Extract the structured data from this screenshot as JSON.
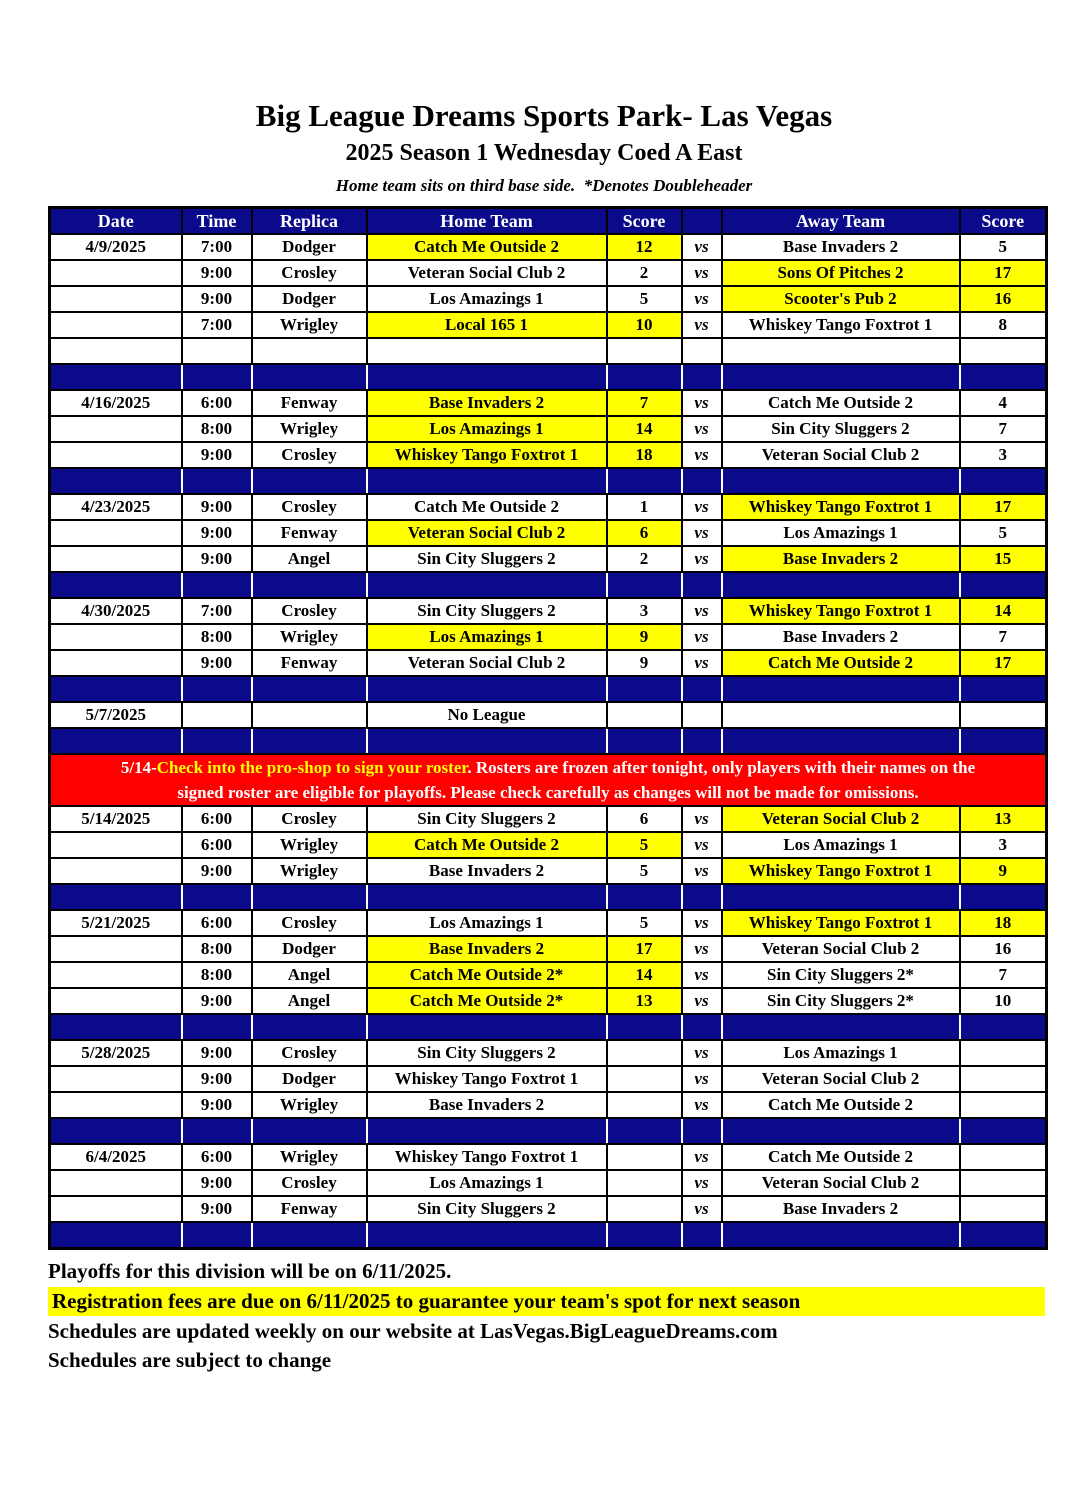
{
  "page": {
    "title": "Big League Dreams Sports Park- Las Vegas",
    "subtitle": "2025 Season 1 Wednesday Coed A East",
    "note": "Home team sits on third base side.  *Denotes Doubleheader"
  },
  "colors": {
    "navy": "#0a0a8a",
    "highlight_yellow": "#ffff00",
    "banner_red": "#fe0000",
    "header_text": "#ffffff"
  },
  "table": {
    "headers": {
      "date": "Date",
      "time": "Time",
      "replica": "Replica",
      "home": "Home Team",
      "score": "Score",
      "vs": "",
      "away": "Away Team",
      "score2": "Score"
    },
    "vs_label": "vs",
    "rows": [
      {
        "type": "game",
        "date": "4/9/2025",
        "time": "7:00",
        "replica": "Dodger",
        "home_team": "Catch Me Outside 2",
        "home_score": "12",
        "away_team": "Base Invaders 2",
        "away_score": "5",
        "winner": "home"
      },
      {
        "type": "game",
        "date": "",
        "time": "9:00",
        "replica": "Crosley",
        "home_team": "Veteran Social Club 2",
        "home_score": "2",
        "away_team": "Sons Of Pitches 2",
        "away_score": "17",
        "winner": "away"
      },
      {
        "type": "game",
        "date": "",
        "time": "9:00",
        "replica": "Dodger",
        "home_team": "Los Amazings 1",
        "home_score": "5",
        "away_team": "Scooter's Pub 2",
        "away_score": "16",
        "winner": "away"
      },
      {
        "type": "game",
        "date": "",
        "time": "7:00",
        "replica": "Wrigley",
        "home_team": "Local 165 1",
        "home_score": "10",
        "away_team": "Whiskey Tango Foxtrot 1",
        "away_score": "8",
        "winner": "home"
      },
      {
        "type": "empty"
      },
      {
        "type": "separator"
      },
      {
        "type": "game",
        "date": "4/16/2025",
        "time": "6:00",
        "replica": "Fenway",
        "home_team": "Base Invaders 2",
        "home_score": "7",
        "away_team": "Catch Me Outside 2",
        "away_score": "4",
        "winner": "home"
      },
      {
        "type": "game",
        "date": "",
        "time": "8:00",
        "replica": "Wrigley",
        "home_team": "Los Amazings 1",
        "home_score": "14",
        "away_team": "Sin City Sluggers 2",
        "away_score": "7",
        "winner": "home"
      },
      {
        "type": "game",
        "date": "",
        "time": "9:00",
        "replica": "Crosley",
        "home_team": "Whiskey Tango Foxtrot 1",
        "home_score": "18",
        "away_team": "Veteran Social Club 2",
        "away_score": "3",
        "winner": "home"
      },
      {
        "type": "separator"
      },
      {
        "type": "game",
        "date": "4/23/2025",
        "time": "9:00",
        "replica": "Crosley",
        "home_team": "Catch Me Outside 2",
        "home_score": "1",
        "away_team": "Whiskey Tango Foxtrot 1",
        "away_score": "17",
        "winner": "away"
      },
      {
        "type": "game",
        "date": "",
        "time": "9:00",
        "replica": "Fenway",
        "home_team": "Veteran Social Club 2",
        "home_score": "6",
        "away_team": "Los Amazings 1",
        "away_score": "5",
        "winner": "home"
      },
      {
        "type": "game",
        "date": "",
        "time": "9:00",
        "replica": "Angel",
        "home_team": "Sin City Sluggers 2",
        "home_score": "2",
        "away_team": "Base Invaders 2",
        "away_score": "15",
        "winner": "away"
      },
      {
        "type": "separator"
      },
      {
        "type": "game",
        "date": "4/30/2025",
        "time": "7:00",
        "replica": "Crosley",
        "home_team": "Sin City Sluggers 2",
        "home_score": "3",
        "away_team": "Whiskey Tango Foxtrot 1",
        "away_score": "14",
        "winner": "away"
      },
      {
        "type": "game",
        "date": "",
        "time": "8:00",
        "replica": "Wrigley",
        "home_team": "Los Amazings 1",
        "home_score": "9",
        "away_team": "Base Invaders 2",
        "away_score": "7",
        "winner": "home"
      },
      {
        "type": "game",
        "date": "",
        "time": "9:00",
        "replica": "Fenway",
        "home_team": "Veteran Social Club 2",
        "home_score": "9",
        "away_team": "Catch Me Outside 2",
        "away_score": "17",
        "winner": "away"
      },
      {
        "type": "separator"
      },
      {
        "type": "noleague",
        "date": "5/7/2025",
        "time": "",
        "replica": "",
        "home_team": "No League",
        "home_score": "",
        "away_team": "",
        "away_score": "",
        "winner": ""
      },
      {
        "type": "separator"
      },
      {
        "type": "banner"
      },
      {
        "type": "game",
        "date": "5/14/2025",
        "time": "6:00",
        "replica": "Crosley",
        "home_team": "Sin City Sluggers 2",
        "home_score": "6",
        "away_team": "Veteran Social Club 2",
        "away_score": "13",
        "winner": "away"
      },
      {
        "type": "game",
        "date": "",
        "time": "6:00",
        "replica": "Wrigley",
        "home_team": "Catch Me Outside 2",
        "home_score": "5",
        "away_team": "Los Amazings 1",
        "away_score": "3",
        "winner": "home"
      },
      {
        "type": "game",
        "date": "",
        "time": "9:00",
        "replica": "Wrigley",
        "home_team": "Base Invaders 2",
        "home_score": "5",
        "away_team": "Whiskey Tango Foxtrot 1",
        "away_score": "9",
        "winner": "away"
      },
      {
        "type": "separator"
      },
      {
        "type": "game",
        "date": "5/21/2025",
        "time": "6:00",
        "replica": "Crosley",
        "home_team": "Los Amazings 1",
        "home_score": "5",
        "away_team": "Whiskey Tango Foxtrot 1",
        "away_score": "18",
        "winner": "away"
      },
      {
        "type": "game",
        "date": "",
        "time": "8:00",
        "replica": "Dodger",
        "home_team": "Base Invaders 2",
        "home_score": "17",
        "away_team": "Veteran Social Club 2",
        "away_score": "16",
        "winner": "home"
      },
      {
        "type": "game",
        "date": "",
        "time": "8:00",
        "replica": "Angel",
        "home_team": "Catch Me Outside 2*",
        "home_score": "14",
        "away_team": "Sin City Sluggers 2*",
        "away_score": "7",
        "winner": "home"
      },
      {
        "type": "game",
        "date": "",
        "time": "9:00",
        "replica": "Angel",
        "home_team": "Catch Me Outside 2*",
        "home_score": "13",
        "away_team": "Sin City Sluggers 2*",
        "away_score": "10",
        "winner": "home"
      },
      {
        "type": "separator"
      },
      {
        "type": "game",
        "date": "5/28/2025",
        "time": "9:00",
        "replica": "Crosley",
        "home_team": "Sin City Sluggers 2",
        "home_score": "",
        "away_team": "Los Amazings 1",
        "away_score": "",
        "winner": ""
      },
      {
        "type": "game",
        "date": "",
        "time": "9:00",
        "replica": "Dodger",
        "home_team": "Whiskey Tango Foxtrot 1",
        "home_score": "",
        "away_team": "Veteran Social Club 2",
        "away_score": "",
        "winner": ""
      },
      {
        "type": "game",
        "date": "",
        "time": "9:00",
        "replica": "Wrigley",
        "home_team": "Base Invaders 2",
        "home_score": "",
        "away_team": "Catch Me Outside 2",
        "away_score": "",
        "winner": ""
      },
      {
        "type": "separator"
      },
      {
        "type": "game",
        "date": "6/4/2025",
        "time": "6:00",
        "replica": "Wrigley",
        "home_team": "Whiskey Tango Foxtrot 1",
        "home_score": "",
        "away_team": "Catch Me Outside 2",
        "away_score": "",
        "winner": ""
      },
      {
        "type": "game",
        "date": "",
        "time": "9:00",
        "replica": "Crosley",
        "home_team": "Los Amazings 1",
        "home_score": "",
        "away_team": "Veteran Social Club 2",
        "away_score": "",
        "winner": ""
      },
      {
        "type": "game",
        "date": "",
        "time": "9:00",
        "replica": "Fenway",
        "home_team": "Sin City Sluggers 2",
        "home_score": "",
        "away_team": "Base Invaders 2",
        "away_score": "",
        "winner": ""
      },
      {
        "type": "separator"
      }
    ]
  },
  "banner": {
    "prefix": "5/14-",
    "highlight": "Check into the pro-shop to sign your roster",
    "rest": ". Rosters are frozen after tonight, only players with their names on the",
    "line2": "signed roster are eligible for playoffs. Please check carefully as changes will not be made for omissions."
  },
  "footer": {
    "playoffs": "Playoffs for this division will be on 6/11/2025.",
    "registration": "Registration fees are due on 6/11/2025 to guarantee your team's spot for next season",
    "website": "Schedules are updated weekly on our website at LasVegas.BigLeagueDreams.com",
    "disclaimer": "Schedules are subject to change"
  }
}
